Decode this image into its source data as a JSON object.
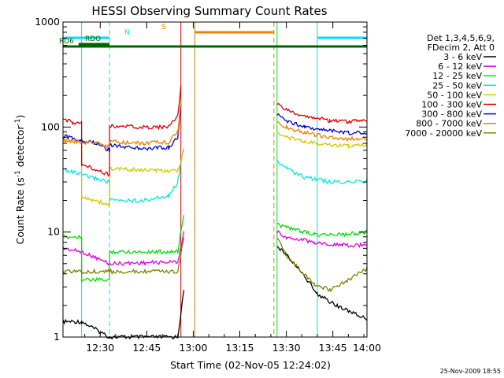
{
  "chart_data": {
    "type": "line",
    "title": "HESSI Observing Summary Count Rates",
    "xlabel": "Start Time (02-Nov-05 12:24:02)",
    "ylabel_main": "Count Rate (s",
    "ylabel_sup1": "-1",
    "ylabel_mid": " detector",
    "ylabel_sup2": "-1",
    "ylabel_end": ")",
    "yscale": "log",
    "ylim": [
      1,
      1000
    ],
    "xlim_minutes": [
      -6,
      92
    ],
    "x_ticks": [
      {
        "label": "12:30",
        "min": 6
      },
      {
        "label": "12:45",
        "min": 21
      },
      {
        "label": "13:00",
        "min": 36
      },
      {
        "label": "13:15",
        "min": 51
      },
      {
        "label": "13:30",
        "min": 66
      },
      {
        "label": "13:45",
        "min": 81
      },
      {
        "label": "14:00",
        "min": 96
      }
    ],
    "y_ticks": [
      {
        "label": "1",
        "v": 1
      },
      {
        "label": "10",
        "v": 10
      },
      {
        "label": "100",
        "v": 100
      },
      {
        "label": "1000",
        "v": 1000
      }
    ],
    "legend_header": [
      "Det 1,3,4,5,6,9,",
      "FDecim 2, Att 0"
    ],
    "legend_position": "right",
    "timestamp": "25-Nov-2009 18:55",
    "flags": [
      {
        "label": "N",
        "color": "#00e0f0",
        "segments": [
          [
            -6,
            9
          ],
          [
            76,
            92
          ]
        ]
      },
      {
        "label": "S",
        "color": "#f08000",
        "segments": [
          [
            36.5,
            62
          ]
        ]
      },
      {
        "label": "RDO",
        "color": "#006400",
        "segments": [
          [
            -1,
            9
          ]
        ]
      },
      {
        "label": "RD6",
        "color": "#006400",
        "segments": [
          [
            -6,
            9
          ],
          [
            9,
            92
          ]
        ]
      }
    ],
    "vlines": [
      {
        "min": 0,
        "color": "#00e0f0",
        "style": "solid"
      },
      {
        "min": 9,
        "color": "#00e0f0",
        "style": "dashed"
      },
      {
        "min": 32,
        "color": "#e00000",
        "style": "solid"
      },
      {
        "min": 36.5,
        "color": "#c08000",
        "style": "solid"
      },
      {
        "min": 62,
        "color": "#f08000",
        "style": "dashed"
      },
      {
        "min": 63,
        "color": "#00e040",
        "style": "solid"
      },
      {
        "min": 76,
        "color": "#00e0f0",
        "style": "solid"
      },
      {
        "min": 92,
        "color": "#00e0f0",
        "style": "dashed"
      }
    ],
    "series": [
      {
        "name": "3 - 6 keV",
        "color": "#000000",
        "segments": [
          {
            "x": [
              -6,
              0,
              9,
              31,
              33
            ],
            "y": [
              1.4,
              1.4,
              1.0,
              1.0,
              2.8
            ]
          },
          {
            "x": [
              63,
              64,
              70,
              76,
              82,
              92
            ],
            "y": [
              7.5,
              7,
              4.5,
              2.6,
              2.0,
              1.5
            ]
          }
        ]
      },
      {
        "name": "6 - 12 keV",
        "color": "#e000e0",
        "segments": [
          {
            "x": [
              -6,
              0,
              9,
              31,
              33
            ],
            "y": [
              7,
              6.5,
              5.0,
              5.2,
              10
            ]
          },
          {
            "x": [
              63,
              66,
              75,
              84,
              92
            ],
            "y": [
              10,
              9,
              8.0,
              7.5,
              7.5
            ]
          }
        ]
      },
      {
        "name": "12 - 25 keV",
        "color": "#00e000",
        "segments": [
          {
            "x": [
              -6,
              0,
              0,
              9,
              9,
              31,
              33
            ],
            "y": [
              9,
              9,
              3.5,
              3.5,
              6.5,
              6.5,
              15
            ]
          },
          {
            "x": [
              63,
              66,
              75,
              84,
              92
            ],
            "y": [
              12,
              11,
              9.5,
              9.5,
              10
            ]
          }
        ]
      },
      {
        "name": "25 - 50 keV",
        "color": "#00e8e8",
        "segments": [
          {
            "x": [
              -6,
              0,
              9,
              9,
              20,
              28,
              31,
              33
            ],
            "y": [
              40,
              35,
              30,
              20,
              20,
              22,
              30,
              65
            ]
          },
          {
            "x": [
              63,
              66,
              72,
              80,
              86,
              92
            ],
            "y": [
              48,
              40,
              33,
              30,
              30,
              31
            ]
          }
        ]
      },
      {
        "name": "50 - 100 keV",
        "color": "#cccc00",
        "segments": [
          {
            "x": [
              -6,
              0,
              0,
              9,
              9,
              31,
              33
            ],
            "y": [
              75,
              72,
              22,
              18,
              40,
              38,
              60
            ]
          },
          {
            "x": [
              63,
              66,
              72,
              80,
              86,
              92
            ],
            "y": [
              90,
              80,
              72,
              67,
              66,
              68
            ]
          }
        ]
      },
      {
        "name": "100 - 300 keV",
        "color": "#e00000",
        "segments": [
          {
            "x": [
              -6,
              -3,
              -3,
              0,
              0,
              9,
              9,
              20,
              28,
              31,
              32
            ],
            "y": [
              115,
              115,
              110,
              110,
              45,
              35,
              102,
              100,
              100,
              130,
              240
            ]
          },
          {
            "x": [
              63,
              66,
              72,
              80,
              86,
              92
            ],
            "y": [
              165,
              145,
              128,
              115,
              112,
              118
            ]
          }
        ]
      },
      {
        "name": "300 - 800 keV",
        "color": "#0000d0",
        "segments": [
          {
            "x": [
              -6,
              0,
              5,
              9,
              9,
              20,
              28,
              31,
              32
            ],
            "y": [
              82,
              75,
              70,
              60,
              68,
              62,
              64,
              80,
              160
            ]
          },
          {
            "x": [
              63,
              66,
              72,
              80,
              86,
              92
            ],
            "y": [
              135,
              115,
              100,
              92,
              88,
              88
            ]
          }
        ]
      },
      {
        "name": "800 - 7000 keV",
        "color": "#f08000",
        "segments": [
          {
            "x": [
              -6,
              0,
              5,
              9,
              9,
              20,
              28,
              31,
              32
            ],
            "y": [
              75,
              72,
              70,
              65,
              72,
              70,
              72,
              90,
              170
            ]
          },
          {
            "x": [
              63,
              66,
              72,
              80,
              86,
              92
            ],
            "y": [
              115,
              100,
              88,
              80,
              77,
              78
            ]
          }
        ]
      },
      {
        "name": "7000 - 20000 keV",
        "color": "#808000",
        "segments": [
          {
            "x": [
              -6,
              0,
              9,
              31,
              33
            ],
            "y": [
              4.2,
              4.2,
              4.2,
              4.2,
              9
            ]
          },
          {
            "x": [
              63,
              66,
              70,
              75,
              80,
              86,
              92
            ],
            "y": [
              9,
              6,
              4.5,
              3.2,
              2.8,
              3.5,
              4.5
            ]
          }
        ]
      }
    ]
  }
}
